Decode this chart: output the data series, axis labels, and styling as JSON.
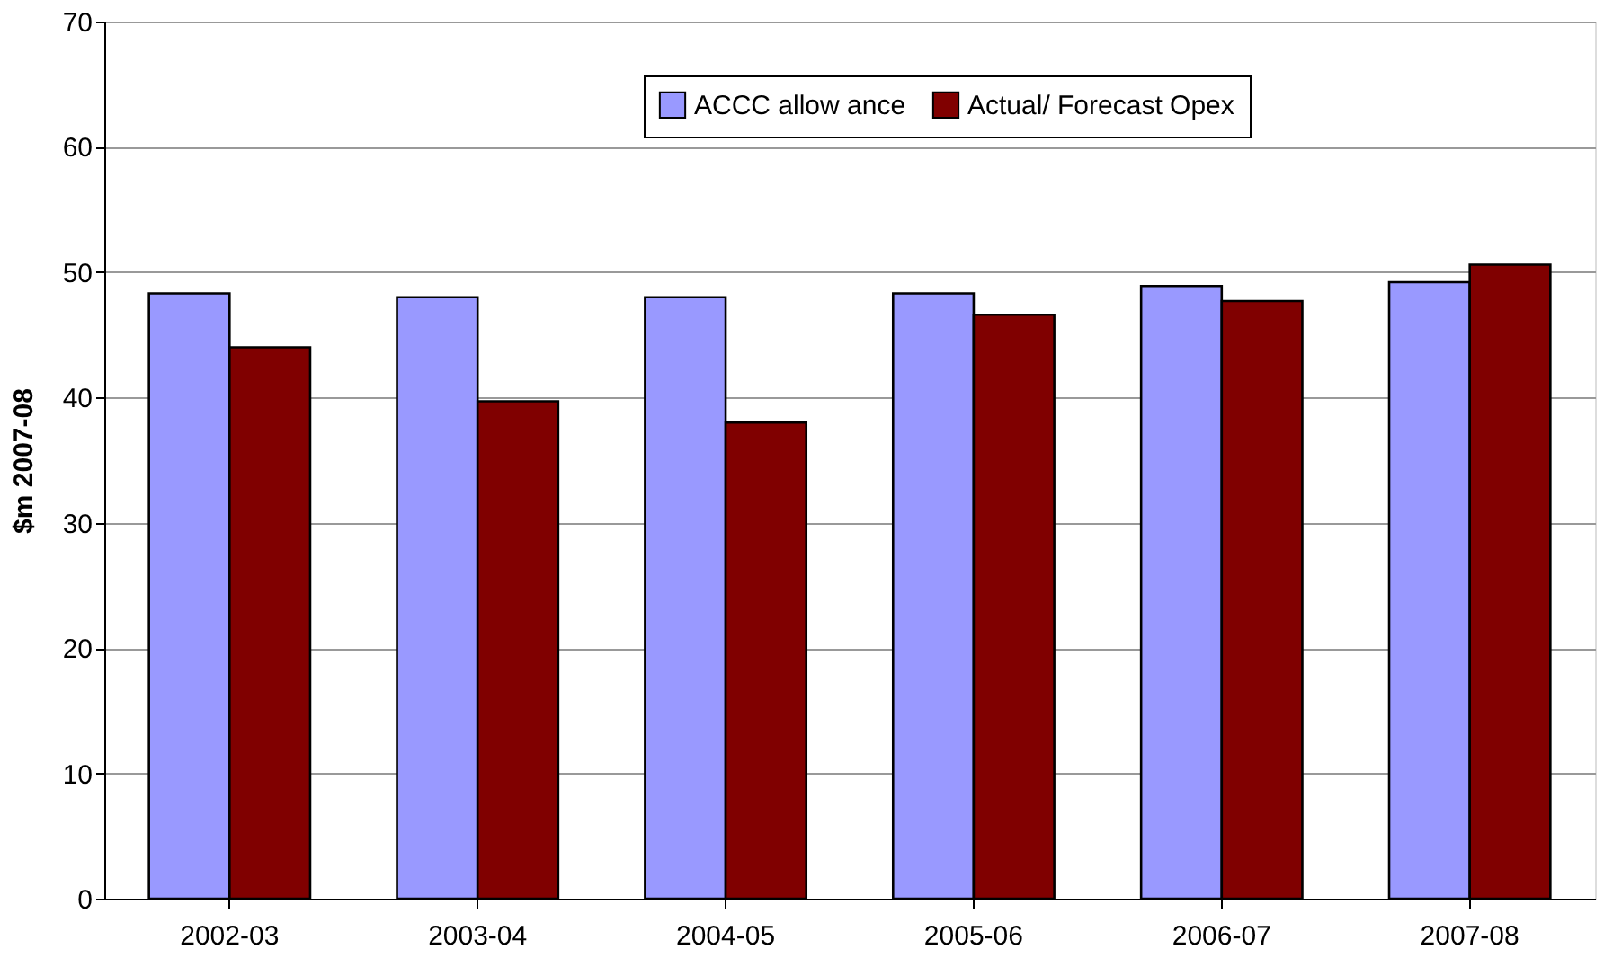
{
  "chart_data": {
    "type": "bar",
    "ylabel": "$m 2007-08",
    "categories": [
      "2002-03",
      "2003-04",
      "2004-05",
      "2005-06",
      "2006-07",
      "2007-08"
    ],
    "series": [
      {
        "name": "ACCC allow ance",
        "color": "#9999ff",
        "values": [
          48.3,
          48.0,
          48.0,
          48.3,
          48.9,
          49.2
        ]
      },
      {
        "name": "Actual/ Forecast Opex",
        "color": "#800000",
        "values": [
          44.0,
          39.7,
          38.0,
          46.6,
          47.7,
          50.6
        ]
      }
    ],
    "ylim": [
      0,
      70
    ],
    "yticks": [
      0,
      10,
      20,
      30,
      40,
      50,
      60,
      70
    ],
    "grid": "y",
    "legend": "top"
  }
}
